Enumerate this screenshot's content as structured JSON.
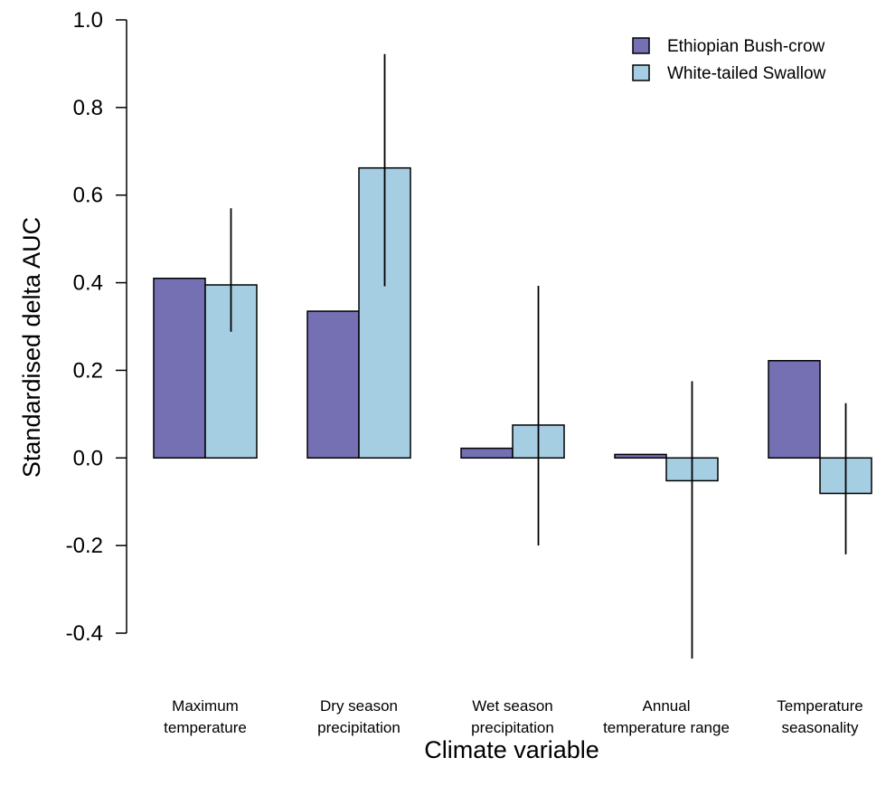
{
  "chart_data": {
    "type": "bar",
    "xlabel": "Climate variable",
    "ylabel": "Standardised delta AUC",
    "ylim": [
      -0.4,
      1.0
    ],
    "yticks": [
      "-0.4",
      "-0.2",
      "0.0",
      "0.2",
      "0.4",
      "0.6",
      "0.8",
      "1.0"
    ],
    "categories": [
      [
        "Maximum",
        "temperature"
      ],
      [
        "Dry season",
        "precipitation"
      ],
      [
        "Wet season",
        "precipitation"
      ],
      [
        "Annual",
        "temperature range"
      ],
      [
        "Temperature",
        "seasonality"
      ]
    ],
    "series": [
      {
        "name": "Ethiopian Bush-crow",
        "color": "#7570b3",
        "values": [
          0.41,
          0.335,
          0.022,
          0.008,
          0.222
        ]
      },
      {
        "name": "White-tailed Swallow",
        "color": "#a6cee3",
        "values": [
          0.395,
          0.662,
          0.075,
          -0.052,
          -0.081
        ],
        "error_bars": [
          [
            0.288,
            0.57
          ],
          [
            0.392,
            0.922
          ],
          [
            -0.2,
            0.393
          ],
          [
            -0.458,
            0.175
          ],
          [
            -0.22,
            0.125
          ]
        ]
      }
    ],
    "legend_position": "top-right",
    "grid": false
  }
}
